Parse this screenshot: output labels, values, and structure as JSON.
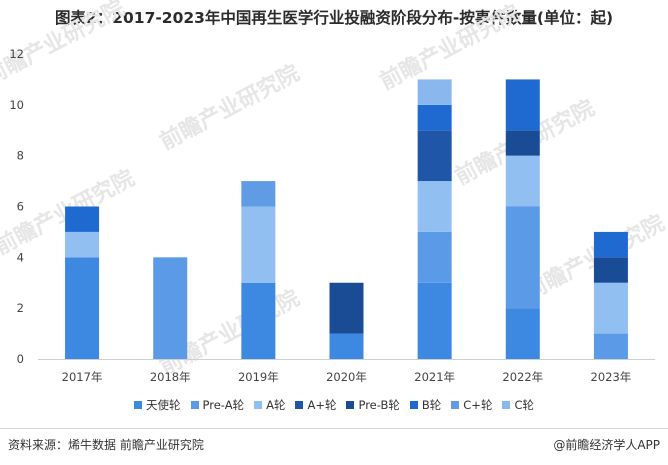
{
  "title": "图表2：2017-2023年中国再生医学行业投融资阶段分布-按事件数量(单位：起)",
  "source": "资料来源：烯牛数据 前瞻产业研究院",
  "brand": "@前瞻经济学人APP",
  "watermark": "前瞻产业研究院",
  "chart_data": {
    "type": "bar",
    "stacked": true,
    "categories": [
      "2017年",
      "2018年",
      "2019年",
      "2020年",
      "2021年",
      "2022年",
      "2023年"
    ],
    "ylim": [
      0,
      12
    ],
    "yticks": [
      0,
      2,
      4,
      6,
      8,
      10,
      12
    ],
    "grid": false,
    "legend_position": "bottom",
    "series": [
      {
        "name": "天使轮",
        "color": "#3d88e0",
        "values": [
          4,
          0,
          3,
          1,
          3,
          2,
          0
        ]
      },
      {
        "name": "Pre-A轮",
        "color": "#5b9ae6",
        "values": [
          0,
          4,
          0,
          0,
          2,
          4,
          1
        ]
      },
      {
        "name": "A轮",
        "color": "#91bff2",
        "values": [
          1,
          0,
          3,
          0,
          2,
          2,
          2
        ]
      },
      {
        "name": "A+轮",
        "color": "#1f56a7",
        "values": [
          0,
          0,
          0,
          0,
          2,
          0,
          0
        ]
      },
      {
        "name": "Pre-B轮",
        "color": "#1a4c95",
        "values": [
          0,
          0,
          0,
          2,
          0,
          1,
          1
        ]
      },
      {
        "name": "B轮",
        "color": "#1e6ad0",
        "values": [
          1,
          0,
          0,
          0,
          1,
          2,
          1
        ]
      },
      {
        "name": "C+轮",
        "color": "#5f9ce4",
        "values": [
          0,
          0,
          1,
          0,
          0,
          0,
          0
        ]
      },
      {
        "name": "C轮",
        "color": "#8ab8ee",
        "values": [
          0,
          0,
          0,
          0,
          1,
          0,
          0
        ]
      }
    ]
  }
}
